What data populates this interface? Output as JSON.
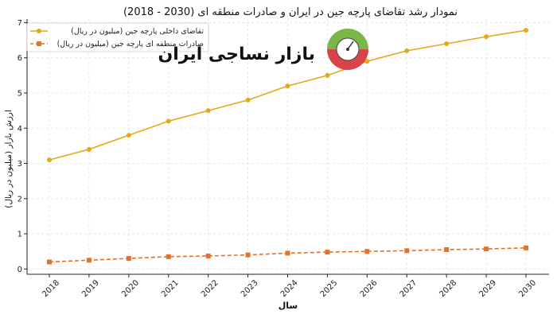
{
  "chart_data": {
    "type": "line",
    "title": "نمودار رشد تقاضای پارچه جین در ایران و صادرات منطقه ای (2030 - 2018)",
    "xlabel": "سال",
    "ylabel": "ارزش بازار (میلیون در ریال)",
    "categories": [
      "2018",
      "2019",
      "2020",
      "2021",
      "2022",
      "2023",
      "2024",
      "2025",
      "2026",
      "2027",
      "2028",
      "2029",
      "2030"
    ],
    "ylim": [
      -0.15,
      7.1
    ],
    "yticks": [
      0,
      1,
      2,
      3,
      4,
      5,
      6,
      7
    ],
    "grid": true,
    "legend_position": "top-left",
    "series": [
      {
        "name": "تقاضای داخلی پارچه جین (میلیون در ریال)",
        "values": [
          3.1,
          3.4,
          3.8,
          4.2,
          4.5,
          4.8,
          5.2,
          5.5,
          5.9,
          6.2,
          6.4,
          6.6,
          6.78
        ],
        "color": "#e6a817",
        "marker": "circle",
        "line_style": "solid"
      },
      {
        "name": "صادرات منطقه ای پارچه جین (میلیون در ریال)",
        "values": [
          0.2,
          0.25,
          0.3,
          0.35,
          0.37,
          0.4,
          0.45,
          0.48,
          0.5,
          0.52,
          0.55,
          0.57,
          0.6
        ],
        "color": "#e0742a",
        "marker": "square",
        "line_style": "dashed"
      }
    ]
  },
  "watermark": {
    "text": "بازار نساجی ایران",
    "logo_colors": {
      "top": "#7ab648",
      "bottom": "#d9434a",
      "center": "#ffffff"
    }
  }
}
